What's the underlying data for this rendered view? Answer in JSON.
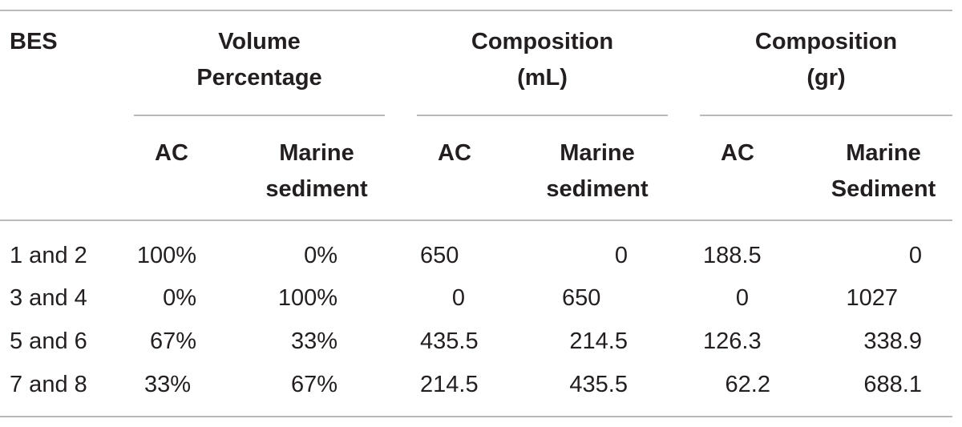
{
  "table": {
    "header": {
      "bes": "BES",
      "groups": [
        {
          "line1": "Volume",
          "line2": "Percentage"
        },
        {
          "line1": "Composition",
          "line2": "(mL)"
        },
        {
          "line1": "Composition",
          "line2": "(gr)"
        }
      ],
      "subcols": [
        {
          "line1": "AC",
          "line2": ""
        },
        {
          "line1": "Marine",
          "line2": "sediment"
        },
        {
          "line1": "AC",
          "line2": ""
        },
        {
          "line1": "Marine",
          "line2": "sediment"
        },
        {
          "line1": "AC",
          "line2": ""
        },
        {
          "line1": "Marine",
          "line2": "Sediment"
        }
      ]
    },
    "rows": [
      {
        "bes": "1 and 2",
        "cells": [
          "100%",
          "0%",
          "650",
          "0",
          "188.5",
          "0"
        ]
      },
      {
        "bes": "3 and 4",
        "cells": [
          "0%",
          "100%",
          "0",
          "650",
          "0",
          "1027"
        ]
      },
      {
        "bes": "5 and 6",
        "cells": [
          "67%",
          "33%",
          "435.5",
          "214.5",
          "126.3",
          "338.9"
        ]
      },
      {
        "bes": "7 and 8",
        "cells": [
          "33%",
          "67%",
          "214.5",
          "435.5",
          "62.2",
          "688.1"
        ]
      }
    ]
  }
}
